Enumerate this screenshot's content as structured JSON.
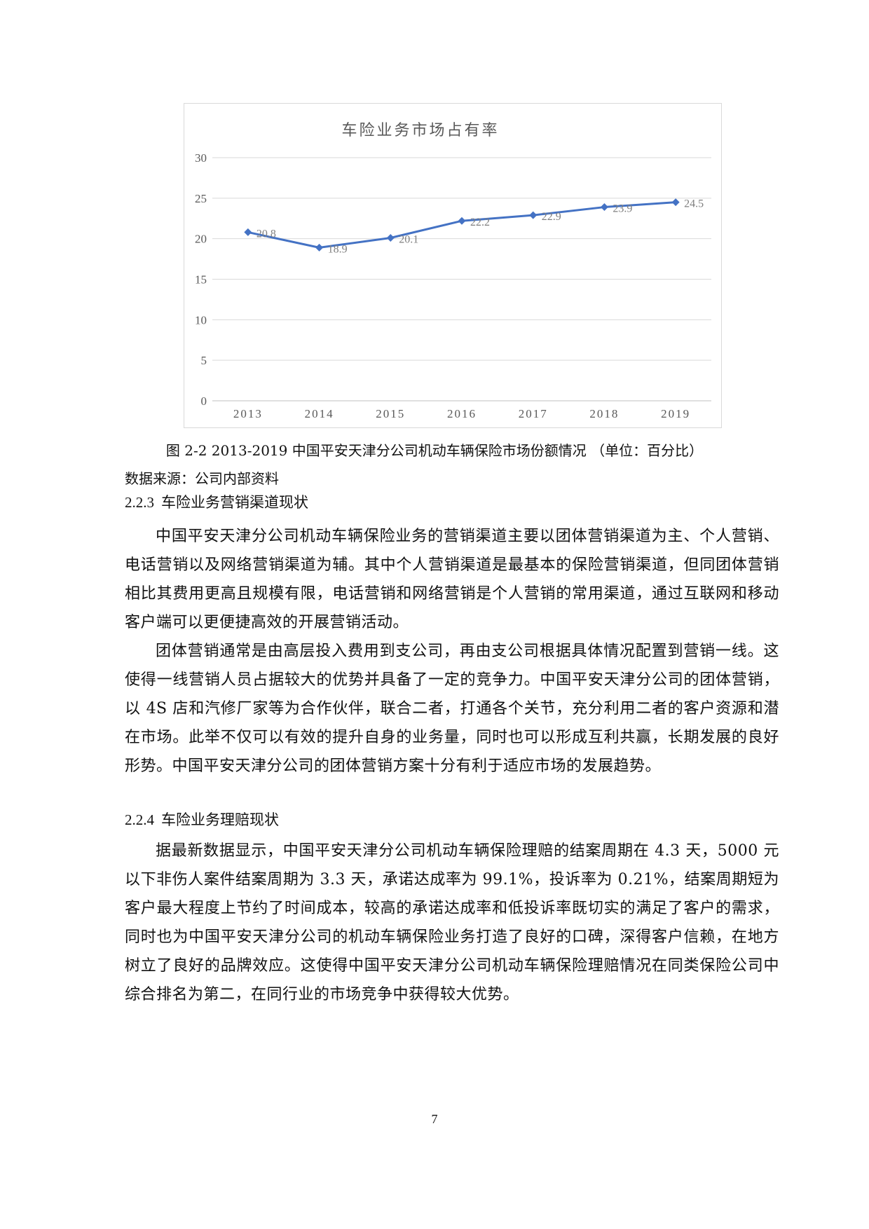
{
  "chart_data": {
    "type": "line",
    "title": "车险业务市场占有率",
    "categories": [
      "2013",
      "2014",
      "2015",
      "2016",
      "2017",
      "2018",
      "2019"
    ],
    "series": [
      {
        "values": [
          20.8,
          18.9,
          20.1,
          22.2,
          22.9,
          23.9,
          24.5
        ],
        "color": "#4472c4"
      }
    ],
    "y_ticks": [
      "0",
      "5",
      "10",
      "15",
      "20",
      "25",
      "30"
    ],
    "ylim": [
      0,
      30
    ],
    "grid": true,
    "data_labels": true
  },
  "figure": {
    "caption": "图 2-2  2013-2019 中国平安天津分公司机动车辆保险市场份额情况 （单位：百分比）",
    "source": "数据来源：公司内部资料"
  },
  "sections": [
    {
      "number": "2.2.3",
      "title": "车险业务营销渠道现状",
      "paragraphs": [
        "中国平安天津分公司机动车辆保险业务的营销渠道主要以团体营销渠道为主、个人营销、电话营销以及网络营销渠道为辅。其中个人营销渠道是最基本的保险营销渠道，但同团体营销相比其费用更高且规模有限，电话营销和网络营销是个人营销的常用渠道，通过互联网和移动客户端可以更便捷高效的开展营销活动。",
        "团体营销通常是由高层投入费用到支公司，再由支公司根据具体情况配置到营销一线。这使得一线营销人员占据较大的优势并具备了一定的竞争力。中国平安天津分公司的团体营销，以 4S 店和汽修厂家等为合作伙伴，联合二者，打通各个关节，充分利用二者的客户资源和潜在市场。此举不仅可以有效的提升自身的业务量，同时也可以形成互利共赢，长期发展的良好形势。中国平安天津分公司的团体营销方案十分有利于适应市场的发展趋势。"
      ]
    },
    {
      "number": "2.2.4",
      "title": "车险业务理赔现状",
      "paragraphs": [
        "据最新数据显示，中国平安天津分公司机动车辆保险理赔的结案周期在 4.3 天，5000 元以下非伤人案件结案周期为 3.3 天，承诺达成率为 99.1%，投诉率为 0.21%，结案周期短为客户最大程度上节约了时间成本，较高的承诺达成率和低投诉率既切实的满足了客户的需求，同时也为中国平安天津分公司的机动车辆保险业务打造了良好的口碑，深得客户信赖，在地方树立了良好的品牌效应。这使得中国平安天津分公司机动车辆保险理赔情况在同类保险公司中综合排名为第二，在同行业的市场竞争中获得较大优势。"
      ]
    }
  ],
  "page_number": "7"
}
